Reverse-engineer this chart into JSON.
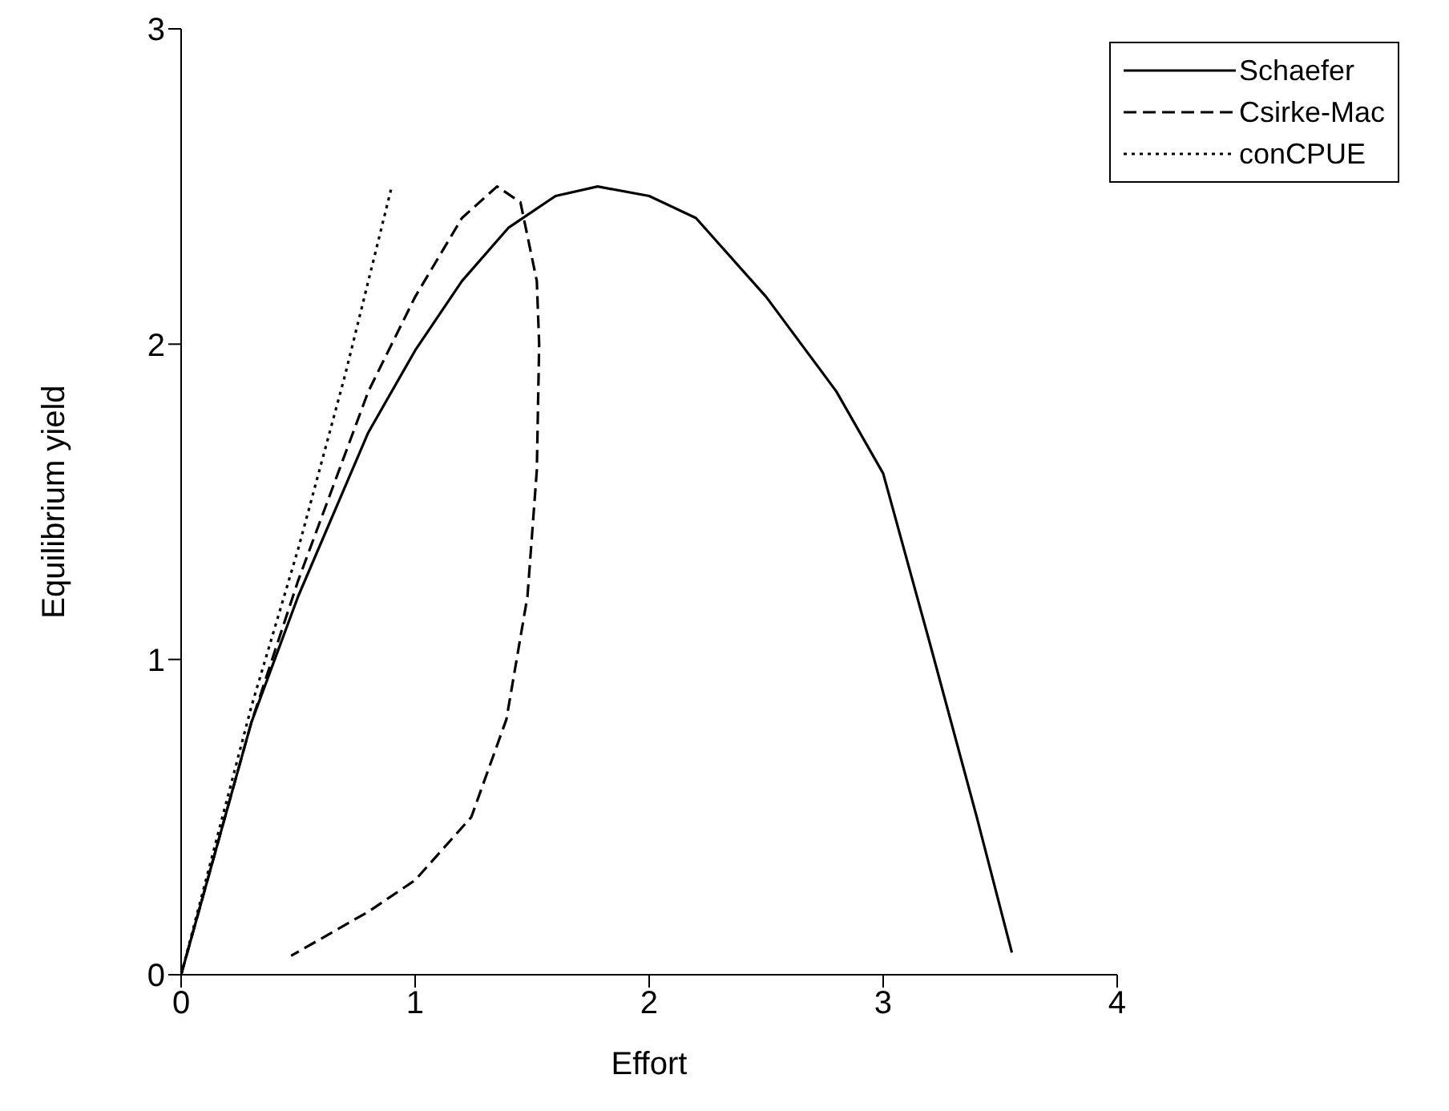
{
  "chart_data": {
    "type": "line",
    "xlabel": "Effort",
    "ylabel": "Equilibrium yield",
    "xlim": [
      0,
      4
    ],
    "ylim": [
      0,
      3
    ],
    "xticks": [
      0,
      1,
      2,
      3,
      4
    ],
    "yticks": [
      0,
      1,
      2,
      3
    ],
    "grid": false,
    "legend": "top right",
    "marker": "none",
    "series": [
      {
        "name": "Schaefer",
        "color": "#000000",
        "line_style": "solid",
        "x": [
          0,
          0.3,
          0.5,
          0.8,
          1.0,
          1.2,
          1.4,
          1.6,
          1.78,
          2.0,
          2.2,
          2.5,
          2.8,
          3.0,
          3.2,
          3.4,
          3.55
        ],
        "values": [
          0,
          0.8,
          1.2,
          1.72,
          1.98,
          2.2,
          2.37,
          2.47,
          2.5,
          2.47,
          2.4,
          2.15,
          1.85,
          1.59,
          1.05,
          0.5,
          0.07
        ]
      },
      {
        "name": "Csirke-Mac",
        "color": "#000000",
        "line_style": "dashed",
        "x": [
          0,
          0.3,
          0.5,
          0.8,
          1.0,
          1.2,
          1.35,
          1.45,
          1.52,
          1.53,
          1.52,
          1.48,
          1.39,
          1.24,
          1.0,
          0.8,
          0.47
        ],
        "values": [
          0,
          0.8,
          1.25,
          1.85,
          2.15,
          2.4,
          2.5,
          2.45,
          2.2,
          2.0,
          1.6,
          1.2,
          0.81,
          0.5,
          0.3,
          0.2,
          0.06
        ]
      },
      {
        "name": "conCPUE",
        "color": "#000000",
        "line_style": "dotted",
        "x": [
          0,
          0.3,
          0.5,
          0.7,
          0.9
        ],
        "values": [
          0,
          0.85,
          1.35,
          1.9,
          2.5
        ]
      }
    ]
  }
}
